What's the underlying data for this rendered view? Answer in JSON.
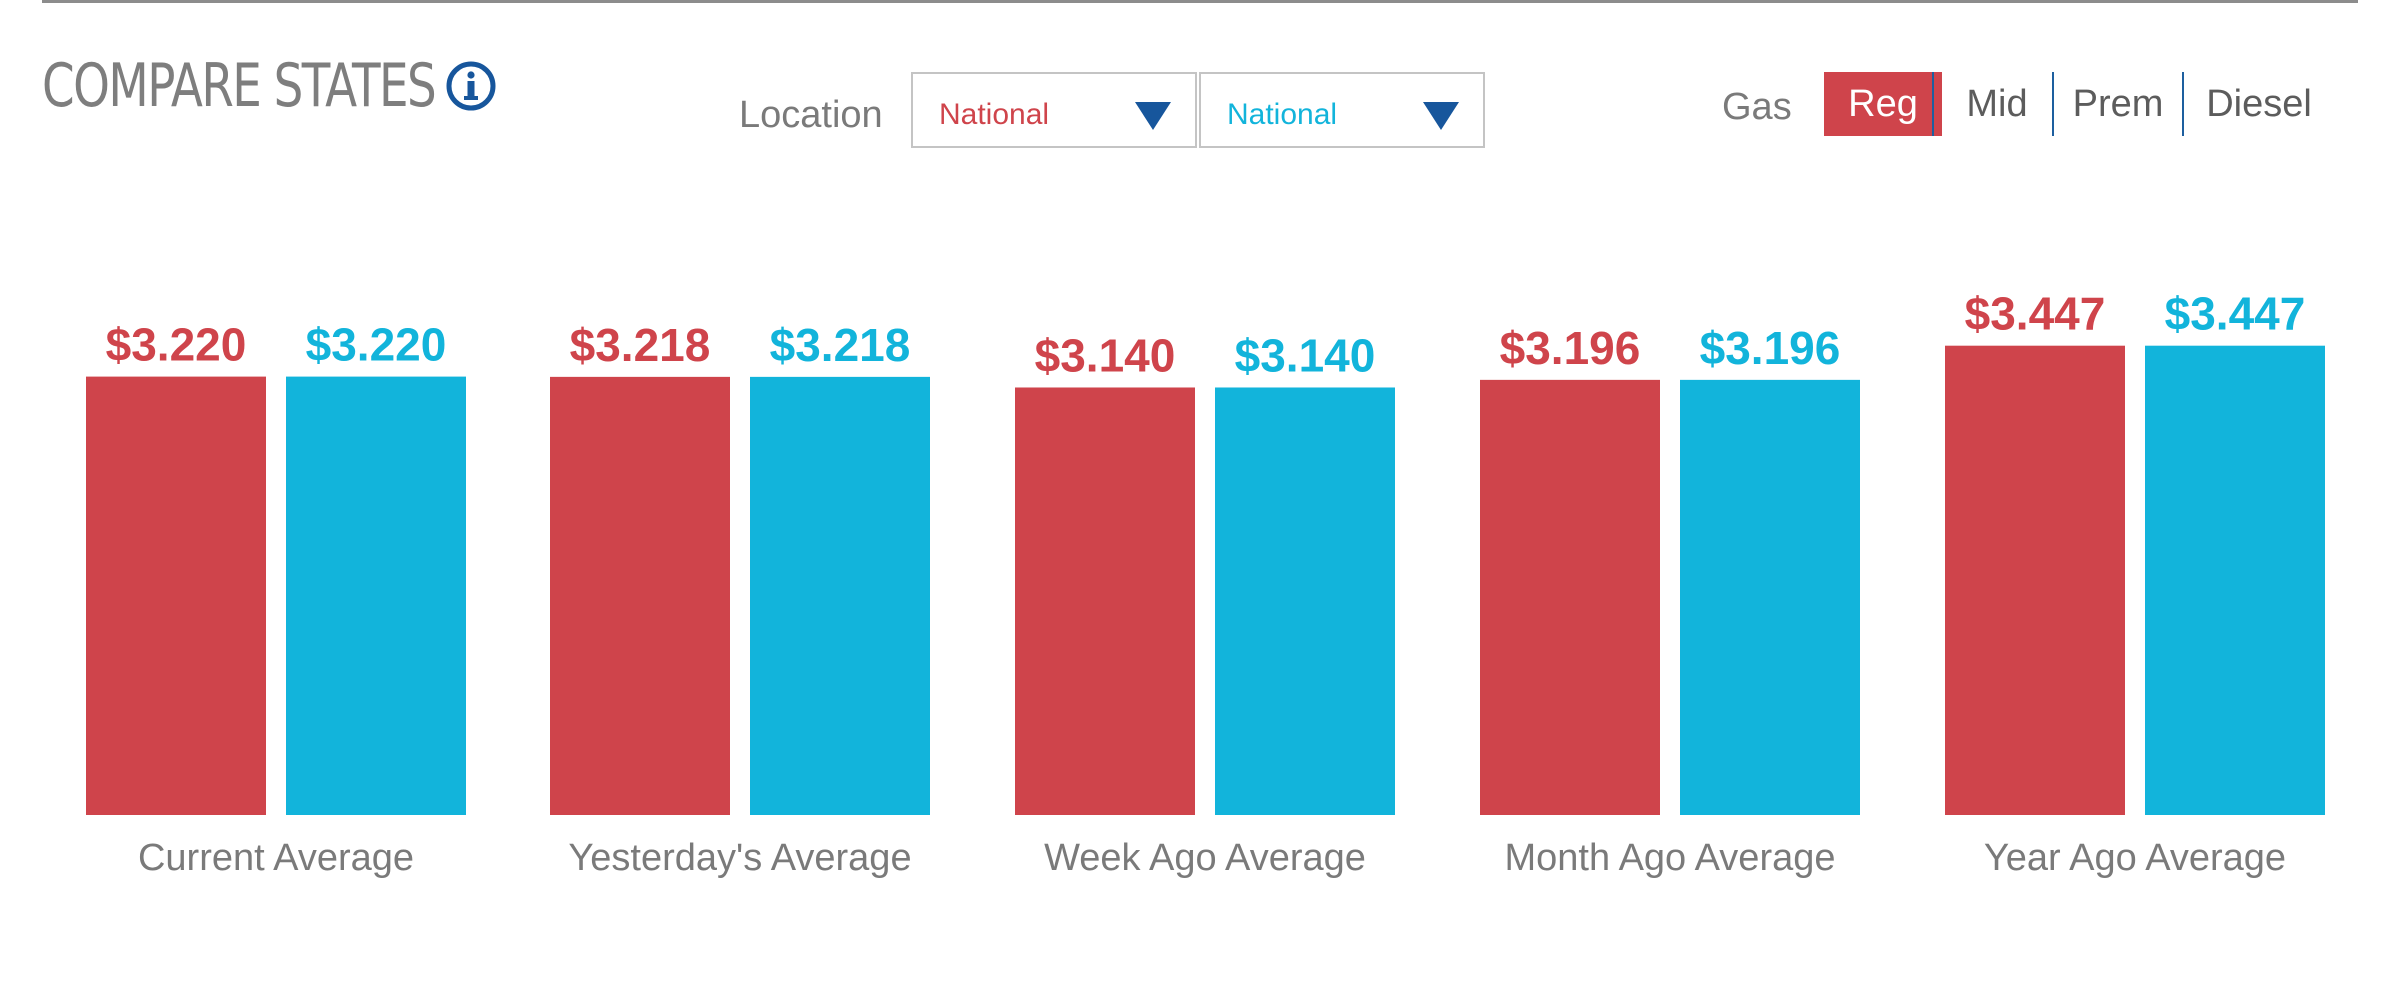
{
  "title": "COMPARE STATES",
  "location": {
    "label": "Location",
    "selections": [
      {
        "value": "National",
        "color": "#cf444b"
      },
      {
        "value": "National",
        "color": "#12b4db"
      }
    ]
  },
  "fuel": {
    "label": "Gas",
    "options": [
      "Reg",
      "Mid",
      "Prem",
      "Diesel"
    ],
    "selected": "Reg"
  },
  "colors": {
    "series_a": "#cf444b",
    "series_b": "#12b4db",
    "text_muted": "#7a7a7a",
    "accent_blue": "#17569c"
  },
  "icons": [
    "info-icon",
    "dropdown-arrow-icon"
  ],
  "chart_data": {
    "type": "bar",
    "categories": [
      "Current Average",
      "Yesterday's Average",
      "Week Ago Average",
      "Month Ago Average",
      "Year Ago Average"
    ],
    "series": [
      {
        "values": [
          3.22,
          3.218,
          3.14,
          3.196,
          3.447
        ],
        "labels": [
          "$3.220",
          "$3.218",
          "$3.140",
          "$3.196",
          "$3.447"
        ]
      },
      {
        "values": [
          3.22,
          3.218,
          3.14,
          3.196,
          3.447
        ],
        "labels": [
          "$3.220",
          "$3.218",
          "$3.140",
          "$3.196",
          "$3.447"
        ]
      }
    ],
    "grid": false,
    "legend": "none"
  }
}
